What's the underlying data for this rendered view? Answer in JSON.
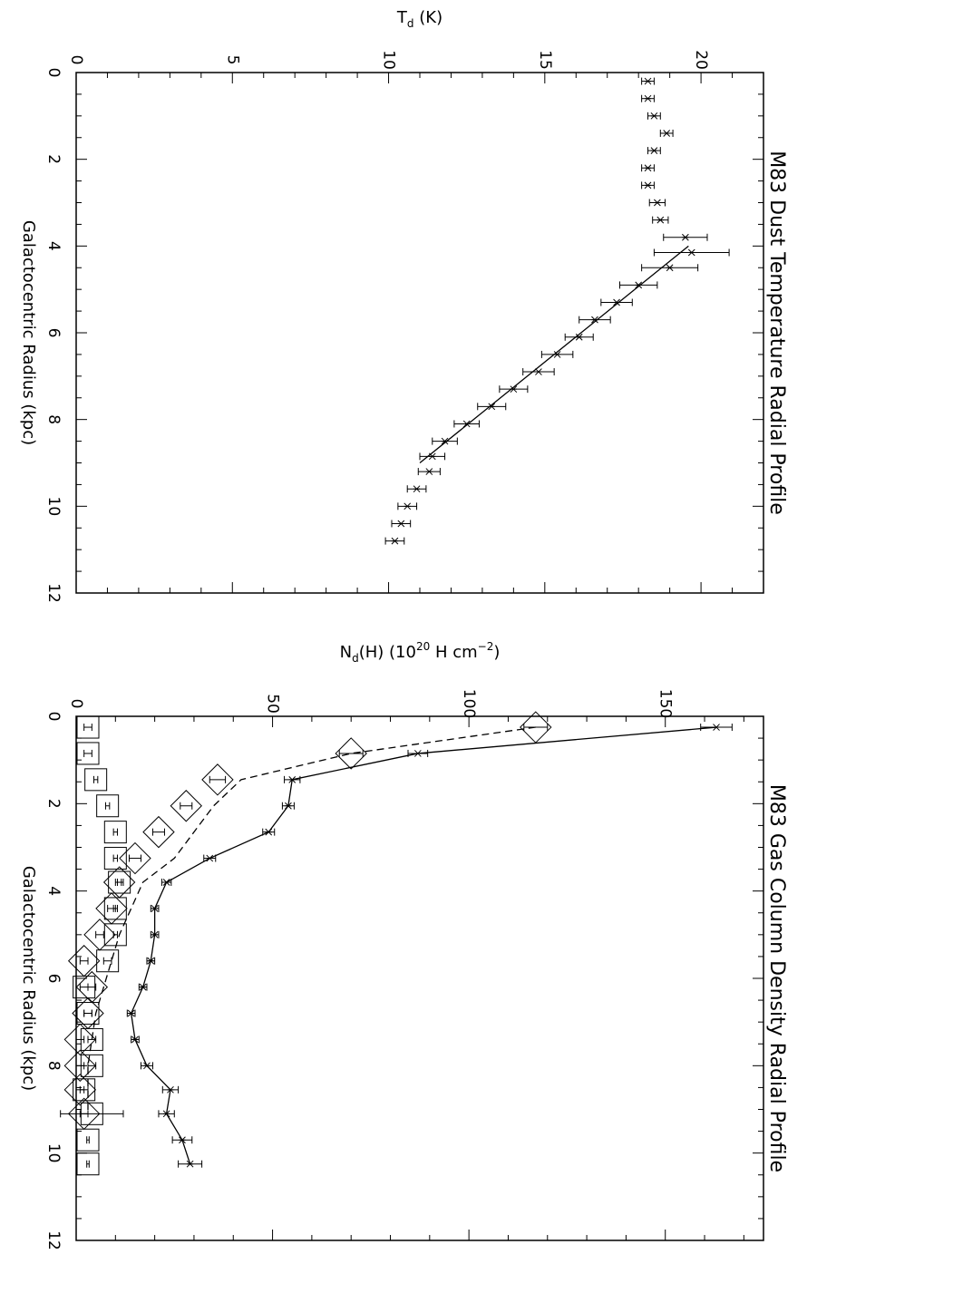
{
  "chart_data": [
    {
      "type": "scatter",
      "title": "M83 Dust Temperature Radial Profile",
      "xlabel": "Galactocentric Radius (kpc)",
      "ylabel_main": "T",
      "ylabel_sub": "d",
      "ylabel_rest": " (K)",
      "xlim": [
        0,
        12
      ],
      "ylim": [
        0,
        22
      ],
      "x_ticks": [
        "0",
        "2",
        "4",
        "6",
        "8",
        "10",
        "12"
      ],
      "y_ticks": [
        "0",
        "5",
        "10",
        "15",
        "20"
      ],
      "series": [
        {
          "x": [
            0.2,
            0.6,
            1.0,
            1.4,
            1.8,
            2.2,
            2.6,
            3.0,
            3.4,
            3.8,
            4.15,
            4.5,
            4.9,
            5.3,
            5.7,
            6.1,
            6.5,
            6.9,
            7.3,
            7.7,
            8.1,
            8.5,
            8.85,
            9.2,
            9.6,
            10.0,
            10.4,
            10.8
          ],
          "y": [
            18.3,
            18.3,
            18.5,
            18.9,
            18.5,
            18.3,
            18.3,
            18.6,
            18.7,
            19.5,
            19.7,
            19.0,
            18.0,
            17.3,
            16.6,
            16.1,
            15.4,
            14.8,
            14.0,
            13.3,
            12.5,
            11.8,
            11.4,
            11.3,
            10.9,
            10.6,
            10.4,
            10.2
          ],
          "err": [
            0.2,
            0.2,
            0.2,
            0.2,
            0.2,
            0.2,
            0.2,
            0.25,
            0.25,
            0.7,
            1.2,
            0.9,
            0.6,
            0.5,
            0.5,
            0.45,
            0.5,
            0.5,
            0.45,
            0.45,
            0.4,
            0.4,
            0.4,
            0.35,
            0.3,
            0.3,
            0.3,
            0.3
          ]
        }
      ],
      "fit_line": {
        "x": [
          4.0,
          9.0
        ],
        "y": [
          19.6,
          11.0
        ]
      }
    },
    {
      "type": "line",
      "title": "M83 Gas Column Density Radial Profile",
      "xlabel": "Galactocentric Radius (kpc)",
      "ylabel_main": "N",
      "ylabel_sub": "d",
      "ylabel_rest": "(H) (10",
      "ylabel_sup": "20",
      "ylabel_rest2": " H cm",
      "ylabel_sup2": "−2",
      "ylabel_close": ")",
      "xlim": [
        0,
        12
      ],
      "ylim": [
        0,
        175
      ],
      "x_ticks": [
        "0",
        "2",
        "4",
        "6",
        "8",
        "10",
        "12"
      ],
      "y_ticks": [
        "0",
        "50",
        "100",
        "150"
      ],
      "series": [
        {
          "x": [
            0.25,
            0.85,
            1.45,
            2.05,
            2.65,
            3.25,
            3.8,
            4.4,
            5.0,
            5.6,
            6.2,
            6.8,
            7.4,
            8.0,
            8.55,
            9.1,
            9.7,
            10.25
          ],
          "y": [
            163,
            87,
            55,
            54,
            49,
            34,
            23,
            20,
            20,
            19,
            17,
            14,
            15,
            18,
            24,
            23,
            27,
            29
          ],
          "err": [
            4,
            2.5,
            2,
            1.5,
            1.5,
            1.5,
            1.2,
            1,
            1,
            1,
            1,
            1,
            1,
            1.5,
            2,
            2,
            2.5,
            3
          ]
        },
        {
          "x": [
            0.25,
            0.85,
            1.45,
            2.05,
            2.65,
            3.25,
            3.8,
            4.4,
            5.0,
            5.6,
            6.2,
            6.8,
            7.4,
            8.0,
            8.55,
            9.1
          ],
          "y": [
            117,
            70,
            42,
            35,
            30,
            25,
            17,
            14,
            11,
            9,
            7,
            5,
            4,
            3,
            3,
            3
          ]
        },
        {
          "x": [
            0.25,
            0.85,
            1.45,
            2.05,
            2.65,
            3.25,
            3.8,
            4.4,
            5.0,
            5.6,
            6.2,
            6.8,
            7.4,
            8.0,
            8.55,
            9.1
          ],
          "y": [
            117,
            70,
            36,
            28,
            21,
            15,
            11,
            9,
            6,
            2,
            4,
            3,
            1,
            1,
            1,
            2
          ],
          "err": [
            3,
            3,
            2,
            1.5,
            1.5,
            1.5,
            1,
            1,
            1,
            1,
            1,
            1,
            1,
            1,
            1,
            1
          ]
        },
        {
          "x": [
            0.25,
            0.85,
            1.45,
            2.05,
            2.65,
            3.25,
            3.8,
            4.4,
            5.0,
            5.6,
            6.2,
            6.8,
            7.4,
            8.0,
            8.55,
            9.1,
            9.7,
            10.25
          ],
          "y": [
            3,
            3,
            5,
            8,
            10,
            10,
            11,
            10,
            10,
            8,
            2,
            3,
            4,
            4,
            2,
            4,
            3,
            3
          ],
          "err": [
            1,
            1,
            0.5,
            0.5,
            0.5,
            0.5,
            0.5,
            0.5,
            0.5,
            1,
            1,
            1,
            1,
            1,
            1,
            8,
            0.3,
            0.3
          ]
        }
      ]
    }
  ]
}
